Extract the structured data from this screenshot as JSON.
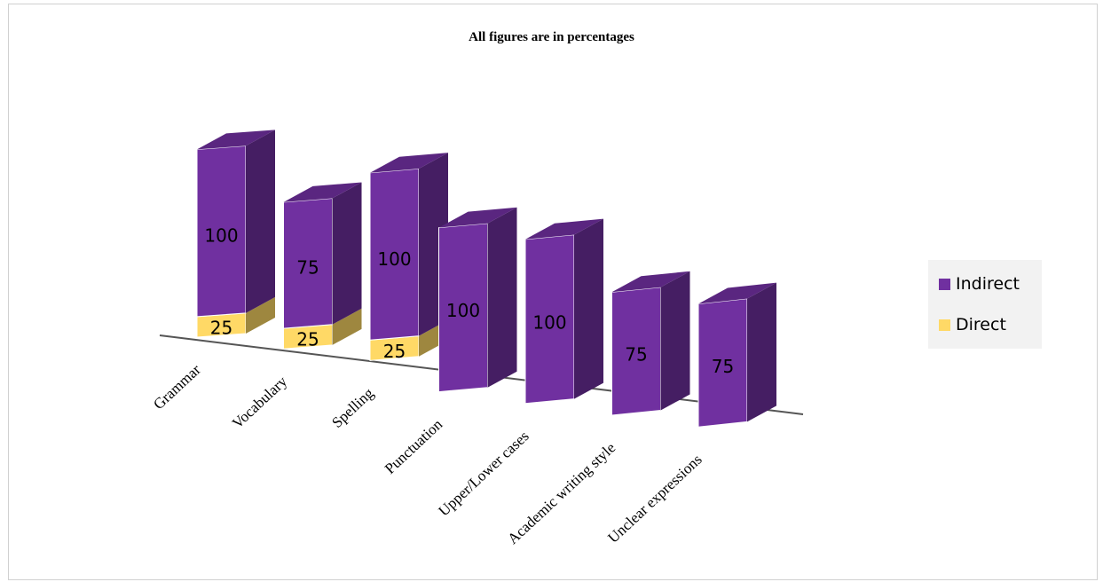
{
  "chart_data": {
    "type": "bar",
    "stacked": true,
    "three_d": true,
    "title": "All figures are in percentages",
    "categories": [
      "Grammar",
      "Vocabulary",
      "Spelling",
      "Punctuation",
      "Upper/Lower cases",
      "Academic writing style",
      "Unclear expressions"
    ],
    "series": [
      {
        "name": "Direct",
        "color": "#ffd966",
        "values": [
          25,
          25,
          25,
          null,
          null,
          null,
          null
        ]
      },
      {
        "name": "Indirect",
        "color": "#7030a0",
        "values": [
          100,
          75,
          100,
          100,
          100,
          75,
          75
        ]
      }
    ],
    "legend_position": "right",
    "grid": false
  },
  "legend": {
    "items": [
      {
        "label": "Indirect",
        "color": "#7030a0"
      },
      {
        "label": "Direct",
        "color": "#ffd966"
      }
    ]
  }
}
